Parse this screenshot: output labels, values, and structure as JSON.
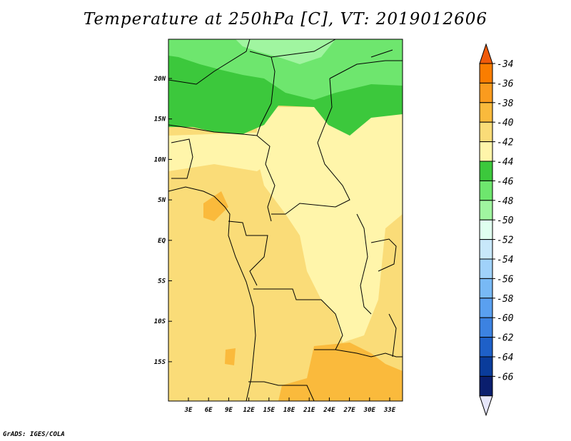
{
  "title": "Temperature at 250hPa [C], VT: 2019012606",
  "footer": "GrADS: IGES/COLA",
  "map": {
    "lat_ticks": [
      "20N",
      "15N",
      "10N",
      "5N",
      "EQ",
      "5S",
      "10S",
      "15S"
    ],
    "lon_ticks": [
      "3E",
      "6E",
      "9E",
      "12E",
      "15E",
      "18E",
      "21E",
      "24E",
      "27E",
      "30E",
      "33E"
    ]
  },
  "colorbar": {
    "labels": [
      "-34",
      "-36",
      "-38",
      "-40",
      "-42",
      "-44",
      "-46",
      "-48",
      "-50",
      "-52",
      "-54",
      "-56",
      "-58",
      "-60",
      "-62",
      "-64",
      "-66"
    ],
    "colors": [
      "#f05a0a",
      "#fa7d00",
      "#fa9b1e",
      "#faba3c",
      "#fadc78",
      "#fff5aa",
      "#3cc83c",
      "#6ee66e",
      "#a0f5a0",
      "#e0fff0",
      "#c8e8fa",
      "#a0d2fa",
      "#78b9f5",
      "#5aa0f0",
      "#3c82e1",
      "#1e60c8",
      "#0a3c9b",
      "#0a1e6e",
      "#e6e6fa"
    ]
  }
}
